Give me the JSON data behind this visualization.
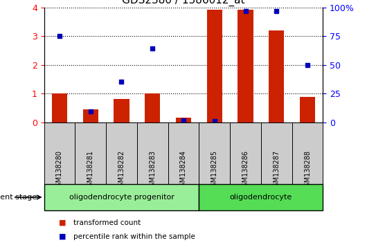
{
  "title": "GDS2380 / 1386012_at",
  "samples": [
    "GSM138280",
    "GSM138281",
    "GSM138282",
    "GSM138283",
    "GSM138284",
    "GSM138285",
    "GSM138286",
    "GSM138287",
    "GSM138288"
  ],
  "transformed_count": [
    1.0,
    0.45,
    0.82,
    1.0,
    0.18,
    3.92,
    3.92,
    3.2,
    0.88
  ],
  "percentile_rank": [
    3.0,
    0.38,
    1.42,
    2.58,
    0.08,
    0.05,
    3.88,
    3.88,
    2.0
  ],
  "bar_color": "#cc2200",
  "dot_color": "#0000bb",
  "ylim_left": [
    0,
    4
  ],
  "ylim_right": [
    0,
    100
  ],
  "yticks_left": [
    0,
    1,
    2,
    3,
    4
  ],
  "yticks_right": [
    0,
    25,
    50,
    75,
    100
  ],
  "yticklabels_right": [
    "0",
    "25",
    "50",
    "75",
    "100%"
  ],
  "groups": [
    {
      "label": "oligodendrocyte progenitor",
      "start": 0,
      "end": 5,
      "color": "#99ee99"
    },
    {
      "label": "oligodendrocyte",
      "start": 5,
      "end": 9,
      "color": "#55dd55"
    }
  ],
  "group_label": "development stage",
  "legend_items": [
    {
      "color": "#cc2200",
      "label": "transformed count"
    },
    {
      "color": "#0000bb",
      "label": "percentile rank within the sample"
    }
  ],
  "background_color": "#ffffff",
  "xlabel_bg": "#cccccc",
  "bar_width": 0.5
}
